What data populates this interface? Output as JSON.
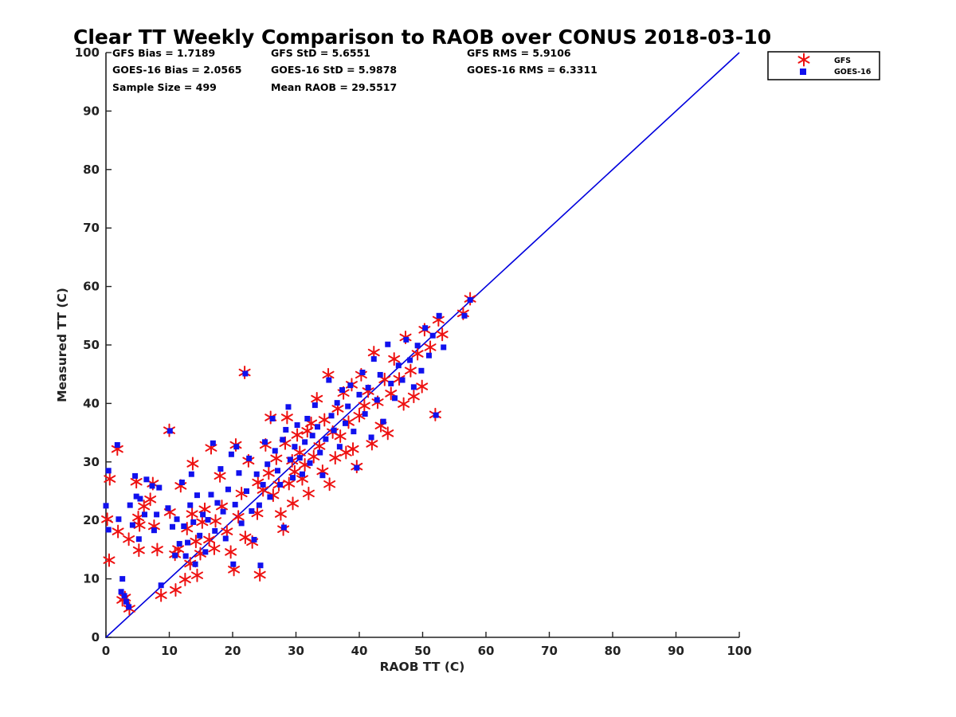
{
  "chart_data": {
    "type": "scatter",
    "title": "Clear TT Weekly Comparison to RAOB over CONUS 2018-03-10",
    "xlabel": "RAOB TT (C)",
    "ylabel": "Measured TT (C)",
    "xlim": [
      0,
      100
    ],
    "ylim": [
      0,
      100
    ],
    "xticks": [
      "0",
      "10",
      "20",
      "30",
      "40",
      "50",
      "60",
      "70",
      "80",
      "90",
      "100"
    ],
    "yticks": [
      "0",
      "10",
      "20",
      "30",
      "40",
      "50",
      "60",
      "70",
      "80",
      "90",
      "100"
    ],
    "reference_line": {
      "from": [
        0,
        0
      ],
      "to": [
        100,
        100
      ],
      "color": "#0000dd"
    },
    "stats": [
      [
        "GFS Bias = 1.7189",
        "GFS StD = 5.6551",
        "GFS RMS = 5.9106"
      ],
      [
        "GOES-16 Bias = 2.0565",
        "GOES-16 StD = 5.9878",
        "GOES-16 RMS = 6.3311"
      ],
      [
        "Sample Size = 499",
        "Mean RAOB = 29.5517"
      ]
    ],
    "legend": {
      "position": "top-right, outside plot",
      "entries": [
        {
          "label": "GFS",
          "marker": "asterisk",
          "color": "#ee1111"
        },
        {
          "label": "GOES-16",
          "marker": "square",
          "color": "#1111ee"
        }
      ]
    },
    "series": [
      {
        "name": "GFS",
        "marker": "asterisk",
        "color": "#ee1111",
        "points": [
          [
            0.2,
            20.2
          ],
          [
            0.5,
            13.2
          ],
          [
            0.6,
            27.1
          ],
          [
            1.8,
            32.2
          ],
          [
            1.9,
            18.1
          ],
          [
            2.6,
            6.4
          ],
          [
            3.0,
            6.8
          ],
          [
            3.6,
            16.8
          ],
          [
            3.7,
            4.9
          ],
          [
            4.8,
            26.6
          ],
          [
            5.1,
            20.5
          ],
          [
            5.2,
            14.9
          ],
          [
            5.3,
            19.2
          ],
          [
            6.0,
            22.4
          ],
          [
            7.0,
            23.6
          ],
          [
            7.4,
            26.3
          ],
          [
            7.6,
            19.0
          ],
          [
            8.1,
            15.0
          ],
          [
            8.7,
            7.2
          ],
          [
            10.0,
            35.4
          ],
          [
            10.1,
            21.4
          ],
          [
            10.9,
            14.2
          ],
          [
            11.0,
            8.1
          ],
          [
            11.4,
            15.1
          ],
          [
            11.8,
            25.9
          ],
          [
            12.5,
            9.9
          ],
          [
            12.8,
            18.6
          ],
          [
            13.3,
            12.6
          ],
          [
            13.6,
            21.1
          ],
          [
            13.7,
            29.7
          ],
          [
            14.2,
            16.4
          ],
          [
            14.4,
            10.6
          ],
          [
            14.9,
            14.3
          ],
          [
            15.2,
            19.7
          ],
          [
            15.6,
            21.9
          ],
          [
            16.3,
            16.7
          ],
          [
            16.6,
            32.4
          ],
          [
            17.1,
            15.2
          ],
          [
            17.3,
            19.9
          ],
          [
            18.0,
            27.6
          ],
          [
            18.3,
            22.4
          ],
          [
            19.1,
            18.1
          ],
          [
            19.7,
            14.6
          ],
          [
            20.2,
            11.6
          ],
          [
            20.5,
            32.9
          ],
          [
            20.9,
            20.6
          ],
          [
            21.4,
            24.6
          ],
          [
            21.9,
            45.3
          ],
          [
            22.0,
            17.1
          ],
          [
            22.5,
            30.2
          ],
          [
            23.1,
            16.3
          ],
          [
            23.9,
            21.2
          ],
          [
            24.0,
            26.5
          ],
          [
            24.3,
            10.7
          ],
          [
            24.8,
            25.2
          ],
          [
            25.2,
            32.9
          ],
          [
            25.7,
            28.1
          ],
          [
            26.0,
            37.6
          ],
          [
            26.4,
            24.3
          ],
          [
            26.9,
            30.6
          ],
          [
            27.3,
            26.1
          ],
          [
            27.6,
            21.1
          ],
          [
            28.0,
            18.5
          ],
          [
            28.3,
            33.2
          ],
          [
            28.6,
            37.6
          ],
          [
            28.9,
            26.3
          ],
          [
            29.4,
            30.2
          ],
          [
            29.5,
            22.9
          ],
          [
            29.8,
            28.3
          ],
          [
            30.2,
            34.6
          ],
          [
            30.6,
            31.6
          ],
          [
            31.0,
            27.1
          ],
          [
            31.4,
            29.5
          ],
          [
            31.8,
            35.3
          ],
          [
            32.0,
            24.6
          ],
          [
            32.4,
            36.6
          ],
          [
            32.8,
            30.9
          ],
          [
            33.3,
            40.8
          ],
          [
            33.7,
            32.7
          ],
          [
            34.2,
            28.4
          ],
          [
            34.5,
            37.2
          ],
          [
            35.1,
            44.9
          ],
          [
            35.3,
            26.2
          ],
          [
            35.8,
            35.1
          ],
          [
            36.2,
            30.7
          ],
          [
            36.6,
            39.1
          ],
          [
            37.0,
            34.4
          ],
          [
            37.5,
            41.8
          ],
          [
            37.9,
            31.6
          ],
          [
            38.3,
            36.8
          ],
          [
            38.8,
            43.2
          ],
          [
            39.0,
            32.2
          ],
          [
            39.6,
            29.2
          ],
          [
            40.0,
            37.9
          ],
          [
            40.3,
            44.9
          ],
          [
            40.8,
            39.6
          ],
          [
            41.4,
            42.1
          ],
          [
            42.0,
            33.1
          ],
          [
            42.3,
            48.7
          ],
          [
            42.9,
            40.2
          ],
          [
            43.4,
            36.2
          ],
          [
            44.0,
            44.1
          ],
          [
            44.5,
            34.9
          ],
          [
            45.0,
            41.7
          ],
          [
            45.5,
            47.6
          ],
          [
            46.3,
            44.2
          ],
          [
            47.0,
            39.9
          ],
          [
            47.3,
            51.3
          ],
          [
            48.1,
            45.6
          ],
          [
            48.6,
            41.2
          ],
          [
            49.2,
            48.5
          ],
          [
            49.9,
            42.9
          ],
          [
            50.3,
            52.6
          ],
          [
            51.2,
            49.6
          ],
          [
            52.0,
            38.1
          ],
          [
            52.5,
            54.3
          ],
          [
            53.1,
            51.8
          ],
          [
            56.4,
            55.4
          ],
          [
            57.5,
            57.9
          ]
        ]
      },
      {
        "name": "GOES-16",
        "marker": "square",
        "color": "#1111ee",
        "points": [
          [
            0.0,
            22.5
          ],
          [
            0.4,
            18.4
          ],
          [
            0.4,
            28.5
          ],
          [
            1.8,
            32.9
          ],
          [
            2.0,
            20.2
          ],
          [
            2.4,
            7.8
          ],
          [
            2.6,
            10.0
          ],
          [
            2.9,
            7.1
          ],
          [
            3.2,
            6.1
          ],
          [
            3.6,
            5.2
          ],
          [
            3.8,
            22.6
          ],
          [
            4.2,
            19.2
          ],
          [
            4.6,
            27.6
          ],
          [
            4.8,
            24.1
          ],
          [
            5.2,
            16.8
          ],
          [
            5.4,
            23.7
          ],
          [
            6.1,
            21.0
          ],
          [
            6.4,
            27.0
          ],
          [
            7.3,
            25.9
          ],
          [
            7.6,
            18.3
          ],
          [
            8.0,
            21.0
          ],
          [
            8.4,
            25.6
          ],
          [
            8.7,
            8.9
          ],
          [
            9.8,
            22.1
          ],
          [
            10.1,
            35.3
          ],
          [
            10.5,
            18.9
          ],
          [
            10.9,
            14.0
          ],
          [
            11.2,
            20.2
          ],
          [
            11.6,
            16.0
          ],
          [
            12.0,
            26.5
          ],
          [
            12.3,
            19.0
          ],
          [
            12.6,
            13.9
          ],
          [
            12.9,
            16.2
          ],
          [
            13.3,
            22.6
          ],
          [
            13.5,
            27.9
          ],
          [
            13.8,
            19.7
          ],
          [
            14.1,
            12.5
          ],
          [
            14.4,
            24.3
          ],
          [
            14.8,
            17.4
          ],
          [
            15.3,
            21.0
          ],
          [
            15.7,
            14.6
          ],
          [
            16.1,
            20.1
          ],
          [
            16.6,
            24.4
          ],
          [
            16.9,
            33.2
          ],
          [
            17.2,
            18.2
          ],
          [
            17.6,
            23.0
          ],
          [
            18.1,
            28.8
          ],
          [
            18.5,
            21.5
          ],
          [
            18.9,
            16.9
          ],
          [
            19.3,
            25.3
          ],
          [
            19.8,
            31.3
          ],
          [
            20.1,
            12.5
          ],
          [
            20.4,
            22.7
          ],
          [
            20.6,
            32.6
          ],
          [
            21.0,
            28.1
          ],
          [
            21.4,
            19.5
          ],
          [
            22.0,
            45.1
          ],
          [
            22.2,
            25.0
          ],
          [
            22.6,
            30.6
          ],
          [
            23.0,
            21.6
          ],
          [
            23.4,
            16.7
          ],
          [
            23.8,
            27.9
          ],
          [
            24.2,
            22.6
          ],
          [
            24.4,
            12.3
          ],
          [
            24.8,
            26.1
          ],
          [
            25.1,
            33.4
          ],
          [
            25.5,
            29.6
          ],
          [
            25.9,
            24.0
          ],
          [
            26.3,
            37.4
          ],
          [
            26.7,
            31.9
          ],
          [
            27.1,
            28.5
          ],
          [
            27.5,
            26.1
          ],
          [
            27.9,
            33.8
          ],
          [
            28.1,
            18.8
          ],
          [
            28.4,
            35.5
          ],
          [
            28.8,
            39.4
          ],
          [
            29.1,
            30.4
          ],
          [
            29.5,
            27.3
          ],
          [
            29.8,
            32.6
          ],
          [
            30.2,
            36.3
          ],
          [
            30.6,
            30.7
          ],
          [
            31.0,
            27.9
          ],
          [
            31.4,
            33.4
          ],
          [
            31.8,
            37.4
          ],
          [
            32.2,
            29.8
          ],
          [
            32.6,
            34.5
          ],
          [
            33.0,
            39.7
          ],
          [
            33.4,
            36.0
          ],
          [
            33.8,
            31.6
          ],
          [
            34.2,
            27.7
          ],
          [
            34.7,
            33.9
          ],
          [
            35.2,
            44.0
          ],
          [
            35.6,
            37.9
          ],
          [
            36.0,
            35.4
          ],
          [
            36.5,
            40.1
          ],
          [
            36.9,
            32.6
          ],
          [
            37.3,
            42.3
          ],
          [
            37.8,
            36.6
          ],
          [
            38.2,
            39.5
          ],
          [
            38.6,
            43.1
          ],
          [
            39.1,
            35.2
          ],
          [
            39.6,
            29.0
          ],
          [
            40.0,
            41.5
          ],
          [
            40.5,
            45.3
          ],
          [
            40.9,
            38.2
          ],
          [
            41.4,
            42.7
          ],
          [
            41.9,
            34.2
          ],
          [
            42.3,
            47.6
          ],
          [
            42.8,
            40.6
          ],
          [
            43.3,
            44.9
          ],
          [
            43.8,
            36.9
          ],
          [
            44.5,
            50.1
          ],
          [
            45.0,
            43.4
          ],
          [
            45.6,
            40.9
          ],
          [
            46.2,
            46.5
          ],
          [
            46.8,
            44.0
          ],
          [
            47.4,
            50.9
          ],
          [
            48.0,
            47.4
          ],
          [
            48.6,
            42.8
          ],
          [
            49.2,
            49.9
          ],
          [
            49.8,
            45.6
          ],
          [
            50.4,
            52.9
          ],
          [
            51.0,
            48.2
          ],
          [
            51.6,
            51.6
          ],
          [
            52.1,
            38.0
          ],
          [
            52.6,
            55.0
          ],
          [
            53.3,
            49.6
          ],
          [
            56.6,
            55.0
          ],
          [
            57.5,
            57.7
          ]
        ]
      }
    ]
  }
}
